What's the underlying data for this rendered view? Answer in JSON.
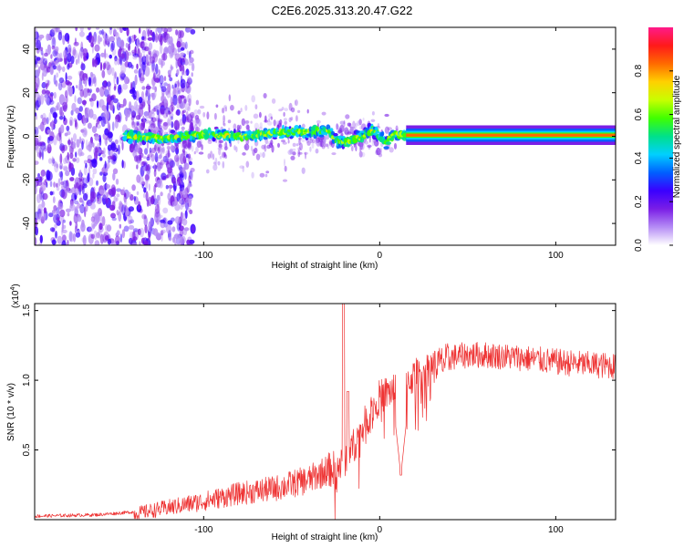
{
  "figure": {
    "title": "C2E6.2025.313.20.47.G22"
  },
  "chart_data": [
    {
      "type": "heatmap",
      "xlabel": "Height of straight line (km)",
      "ylabel": "Frequency (Hz)",
      "xlim": [
        -196,
        134
      ],
      "ylim": [
        -50,
        50
      ],
      "xticks": [
        -100,
        0,
        100
      ],
      "yticks": [
        -40,
        -20,
        0,
        20,
        40
      ],
      "colorbar": {
        "label": "Normalized spectral amplitude",
        "range": [
          0,
          1
        ],
        "ticks": [
          "0.0",
          "0.2",
          "0.4",
          "0.6",
          "0.8"
        ],
        "tick_values": [
          0.0,
          0.2,
          0.4,
          0.6,
          0.8
        ],
        "colors": [
          "#ffffff",
          "#b58cf5",
          "#7a1ee6",
          "#3a00ff",
          "#0060ff",
          "#00d0ff",
          "#00e08a",
          "#40ff00",
          "#c8ff00",
          "#ffd000",
          "#ff6a00",
          "#ff1a1a",
          "#ff1a8a"
        ]
      },
      "ridge": [
        {
          "x": -140,
          "freq": 0.0
        },
        {
          "x": -120,
          "freq": -1.0
        },
        {
          "x": -100,
          "freq": 1.0
        },
        {
          "x": -80,
          "freq": 0.0
        },
        {
          "x": -60,
          "freq": 1.5
        },
        {
          "x": -40,
          "freq": 2.0
        },
        {
          "x": -30,
          "freq": 3.0
        },
        {
          "x": -25,
          "freq": -2.0
        },
        {
          "x": -20,
          "freq": -3.0
        },
        {
          "x": -10,
          "freq": 0.0
        },
        {
          "x": -5,
          "freq": 3.0
        },
        {
          "x": 0,
          "freq": 0.0
        },
        {
          "x": 3,
          "freq": -3.0
        },
        {
          "x": 8,
          "freq": 1.0
        },
        {
          "x": 15,
          "freq": 0.5
        },
        {
          "x": 134,
          "freq": 0.5
        }
      ]
    },
    {
      "type": "line",
      "xlabel": "Height of straight line (km)",
      "ylabel": "SNR (10 * v/v)",
      "y_multiplier": "(x10",
      "y_exponent": "4",
      "y_multiplier_close": ")",
      "xlim": [
        -196,
        134
      ],
      "ylim": [
        0,
        1.55
      ],
      "xticks": [
        -100,
        0,
        100
      ],
      "yticks": [
        0.5,
        1.0,
        1.5
      ],
      "ytick_labels": [
        "0.5",
        "1.0",
        "1.5"
      ],
      "series": [
        {
          "name": "SNR",
          "color": "#ee3333",
          "envelope": [
            {
              "x": -196,
              "y": 0.03
            },
            {
              "x": -160,
              "y": 0.04
            },
            {
              "x": -140,
              "y": 0.06
            },
            {
              "x": -120,
              "y": 0.11
            },
            {
              "x": -100,
              "y": 0.16
            },
            {
              "x": -80,
              "y": 0.22
            },
            {
              "x": -60,
              "y": 0.26
            },
            {
              "x": -40,
              "y": 0.33
            },
            {
              "x": -30,
              "y": 0.4
            },
            {
              "x": -22,
              "y": 0.44
            },
            {
              "x": -15,
              "y": 0.58
            },
            {
              "x": -10,
              "y": 0.7
            },
            {
              "x": -5,
              "y": 0.83
            },
            {
              "x": 0,
              "y": 0.93
            },
            {
              "x": 10,
              "y": 1.0
            },
            {
              "x": 20,
              "y": 1.08
            },
            {
              "x": 30,
              "y": 1.15
            },
            {
              "x": 40,
              "y": 1.2
            },
            {
              "x": 50,
              "y": 1.22
            },
            {
              "x": 60,
              "y": 1.22
            },
            {
              "x": 80,
              "y": 1.2
            },
            {
              "x": 100,
              "y": 1.17
            },
            {
              "x": 120,
              "y": 1.15
            },
            {
              "x": 134,
              "y": 1.14
            }
          ],
          "features": [
            {
              "x": -20.5,
              "y": 1.55,
              "note": "spike"
            },
            {
              "x": -18,
              "y": 0.92,
              "note": "spike"
            },
            {
              "x": 12,
              "y": 0.32,
              "note": "dip"
            }
          ]
        }
      ]
    }
  ]
}
